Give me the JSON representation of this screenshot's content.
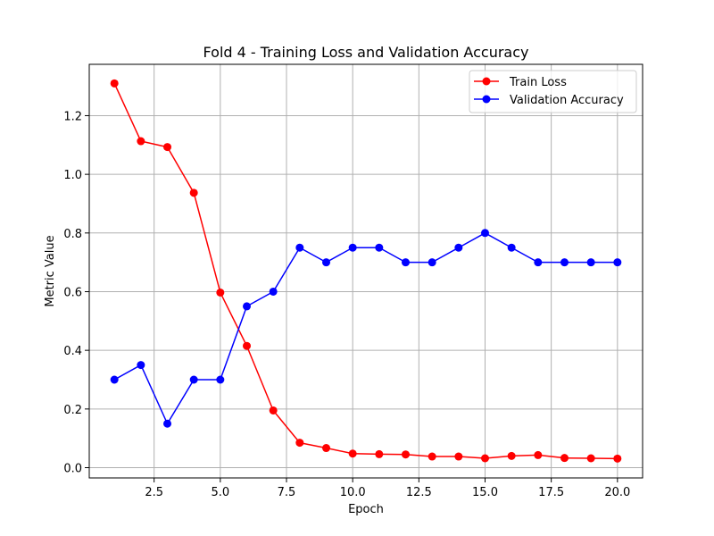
{
  "chart_data": {
    "type": "line",
    "title": "Fold 4 - Training Loss and Validation Accuracy",
    "xlabel": "Epoch",
    "ylabel": "Metric Value",
    "xlim": [
      0.05,
      20.95
    ],
    "ylim": [
      -0.035,
      1.375
    ],
    "xticks": [
      2.5,
      5.0,
      7.5,
      10.0,
      12.5,
      15.0,
      17.5,
      20.0
    ],
    "xtick_labels": [
      "2.5",
      "5.0",
      "7.5",
      "10.0",
      "12.5",
      "15.0",
      "17.5",
      "20.0"
    ],
    "yticks": [
      0.0,
      0.2,
      0.4,
      0.6,
      0.8,
      1.0,
      1.2
    ],
    "ytick_labels": [
      "0.0",
      "0.2",
      "0.4",
      "0.6",
      "0.8",
      "1.0",
      "1.2"
    ],
    "grid": true,
    "legend_position": "upper right",
    "x": [
      1,
      2,
      3,
      4,
      5,
      6,
      7,
      8,
      9,
      10,
      11,
      12,
      13,
      14,
      15,
      16,
      17,
      18,
      19,
      20
    ],
    "series": [
      {
        "name": "Train Loss",
        "color": "#ff0000",
        "marker": "circle",
        "values": [
          1.31,
          1.113,
          1.093,
          0.937,
          0.597,
          0.415,
          0.195,
          0.085,
          0.067,
          0.048,
          0.046,
          0.045,
          0.038,
          0.038,
          0.032,
          0.04,
          0.043,
          0.033,
          0.032,
          0.031
        ]
      },
      {
        "name": "Validation Accuracy",
        "color": "#0000ff",
        "marker": "circle",
        "values": [
          0.3,
          0.35,
          0.15,
          0.3,
          0.3,
          0.55,
          0.6,
          0.75,
          0.7,
          0.75,
          0.75,
          0.7,
          0.7,
          0.75,
          0.8,
          0.75,
          0.7,
          0.7,
          0.7,
          0.7
        ]
      }
    ]
  }
}
